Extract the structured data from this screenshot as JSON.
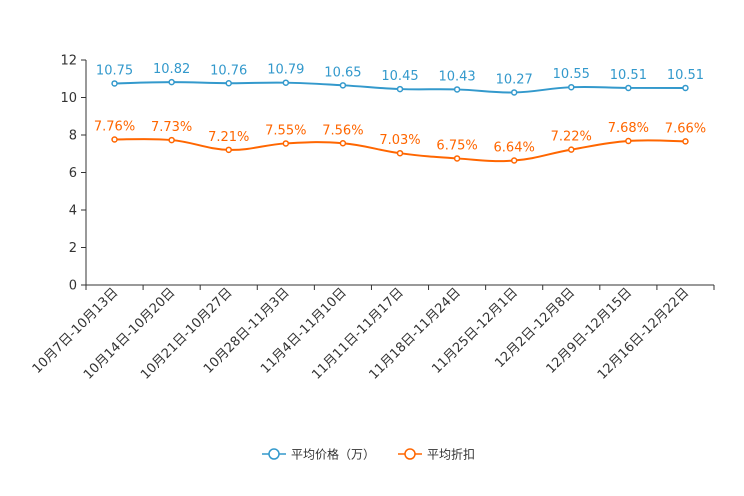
{
  "chart_data": {
    "type": "line",
    "categories": [
      "10月7日-10月13日",
      "10月14日-10月20日",
      "10月21日-10月27日",
      "10月28日-11月3日",
      "11月4日-11月10日",
      "11月11日-11月17日",
      "11月18日-11月24日",
      "11月25日-12月1日",
      "12月2日-12月8日",
      "12月9日-12月15日",
      "12月16日-12月22日"
    ],
    "series": [
      {
        "name": "平均价格（万）",
        "color": "#3399cc",
        "values": [
          10.75,
          10.82,
          10.76,
          10.79,
          10.65,
          10.45,
          10.43,
          10.27,
          10.55,
          10.51,
          10.51
        ],
        "labels": [
          "10.75",
          "10.82",
          "10.76",
          "10.79",
          "10.65",
          "10.45",
          "10.43",
          "10.27",
          "10.55",
          "10.51",
          "10.51"
        ]
      },
      {
        "name": "平均折扣",
        "color": "#ff6600",
        "values": [
          7.76,
          7.73,
          7.21,
          7.55,
          7.56,
          7.03,
          6.75,
          6.64,
          7.22,
          7.68,
          7.66
        ],
        "labels": [
          "7.76%",
          "7.73%",
          "7.21%",
          "7.55%",
          "7.56%",
          "7.03%",
          "6.75%",
          "6.64%",
          "7.22%",
          "7.68%",
          "7.66%"
        ]
      }
    ],
    "ylim": [
      0,
      12
    ],
    "yticks": [
      "0",
      "2",
      "4",
      "6",
      "8",
      "10",
      "12"
    ],
    "legend_position": "bottom-center"
  }
}
